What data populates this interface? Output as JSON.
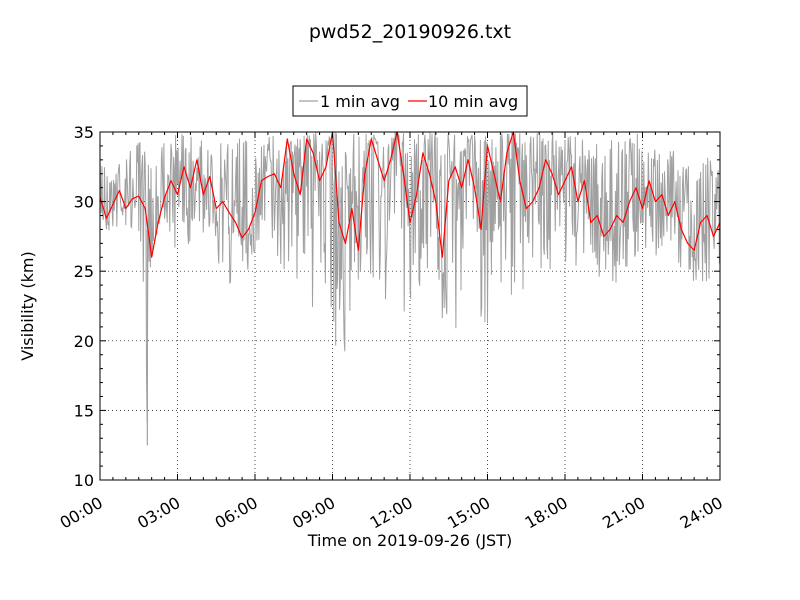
{
  "chart_data": {
    "type": "line",
    "title": "pwd52_20190926.txt",
    "xlabel": "Time on 2019-09-26 (JST)",
    "ylabel": "Visibility (km)",
    "xlim": [
      "00:00",
      "24:00"
    ],
    "ylim": [
      10,
      35
    ],
    "x_ticks": [
      "00:00",
      "03:00",
      "06:00",
      "09:00",
      "12:00",
      "15:00",
      "18:00",
      "21:00",
      "24:00"
    ],
    "y_ticks": [
      10,
      15,
      20,
      25,
      30,
      35
    ],
    "grid": true,
    "legend_position": "top-center",
    "series": [
      {
        "name": "1 min avg",
        "color": "#a0a0a0",
        "x": [
          "00:00",
          "00:30",
          "01:00",
          "01:30",
          "01:50",
          "02:00",
          "02:30",
          "03:00",
          "03:30",
          "04:00",
          "04:30",
          "05:00",
          "05:30",
          "06:00",
          "06:30",
          "07:00",
          "07:30",
          "08:00",
          "08:30",
          "09:00",
          "09:30",
          "10:00",
          "10:30",
          "11:00",
          "11:30",
          "12:00",
          "12:30",
          "13:00",
          "13:30",
          "14:00",
          "14:30",
          "15:00",
          "15:30",
          "16:00",
          "16:30",
          "17:00",
          "17:30",
          "18:00",
          "18:30",
          "19:00",
          "19:30",
          "20:00",
          "20:30",
          "21:00",
          "21:30",
          "22:00",
          "22:30",
          "23:00",
          "23:30",
          "24:00"
        ],
        "low": [
          27.5,
          27.8,
          28.0,
          27.5,
          12.5,
          27.0,
          28.5,
          26.0,
          27.0,
          27.2,
          25.0,
          23.8,
          24.5,
          25.5,
          24.8,
          25.0,
          24.5,
          21.5,
          23.5,
          18.2,
          17.9,
          22.0,
          20.5,
          22.5,
          22.0,
          20.8,
          21.5,
          22.5,
          19.0,
          21.5,
          20.8,
          21.0,
          22.0,
          22.5,
          24.0,
          24.5,
          25.0,
          24.8,
          25.0,
          25.5,
          24.0,
          24.0,
          25.0,
          25.5,
          26.0,
          26.0,
          25.0,
          23.8,
          23.5,
          25.0
        ],
        "high": [
          33.0,
          34.0,
          33.5,
          34.5,
          33.5,
          35.0,
          35.0,
          35.0,
          35.0,
          34.5,
          34.0,
          35.0,
          35.0,
          35.0,
          35.0,
          35.0,
          35.0,
          35.0,
          35.0,
          35.0,
          35.0,
          35.0,
          35.0,
          35.0,
          35.0,
          35.0,
          35.0,
          35.0,
          35.0,
          35.0,
          35.0,
          35.0,
          35.0,
          35.0,
          35.0,
          35.0,
          35.0,
          35.0,
          35.0,
          34.5,
          34.0,
          35.0,
          35.0,
          35.0,
          34.0,
          34.0,
          33.5,
          33.0,
          33.5,
          32.5
        ]
      },
      {
        "name": "10 min avg",
        "color": "#ff0000",
        "x": [
          "00:00",
          "00:15",
          "00:30",
          "00:45",
          "01:00",
          "01:15",
          "01:30",
          "01:45",
          "02:00",
          "02:15",
          "02:30",
          "02:45",
          "03:00",
          "03:15",
          "03:30",
          "03:45",
          "04:00",
          "04:15",
          "04:30",
          "04:45",
          "05:00",
          "05:15",
          "05:30",
          "05:45",
          "06:00",
          "06:15",
          "06:30",
          "06:45",
          "07:00",
          "07:15",
          "07:30",
          "07:45",
          "08:00",
          "08:15",
          "08:30",
          "08:45",
          "09:00",
          "09:15",
          "09:30",
          "09:45",
          "10:00",
          "10:15",
          "10:30",
          "10:45",
          "11:00",
          "11:15",
          "11:30",
          "11:45",
          "12:00",
          "12:15",
          "12:30",
          "12:45",
          "13:00",
          "13:15",
          "13:30",
          "13:45",
          "14:00",
          "14:15",
          "14:30",
          "14:45",
          "15:00",
          "15:15",
          "15:30",
          "15:45",
          "16:00",
          "16:15",
          "16:30",
          "16:45",
          "17:00",
          "17:15",
          "17:30",
          "17:45",
          "18:00",
          "18:15",
          "18:30",
          "18:45",
          "19:00",
          "19:15",
          "19:30",
          "19:45",
          "20:00",
          "20:15",
          "20:30",
          "20:45",
          "21:00",
          "21:15",
          "21:30",
          "21:45",
          "22:00",
          "22:15",
          "22:30",
          "22:45",
          "23:00",
          "23:15",
          "23:30",
          "23:45",
          "24:00"
        ],
        "values": [
          30.3,
          28.8,
          29.8,
          30.8,
          29.5,
          30.2,
          30.4,
          29.5,
          26.0,
          28.5,
          30.3,
          31.5,
          30.5,
          32.5,
          31.0,
          33.0,
          30.5,
          31.8,
          29.5,
          30.0,
          29.2,
          28.5,
          27.4,
          28.0,
          29.2,
          31.5,
          31.8,
          32.0,
          31.0,
          34.5,
          32.0,
          30.5,
          34.5,
          33.5,
          31.5,
          32.5,
          35.0,
          28.5,
          27.0,
          29.5,
          26.5,
          32.0,
          34.5,
          33.0,
          31.5,
          33.0,
          35.0,
          32.0,
          28.5,
          30.5,
          33.5,
          32.0,
          30.0,
          26.0,
          31.5,
          32.5,
          31.0,
          33.0,
          31.0,
          28.0,
          34.0,
          32.0,
          30.0,
          33.5,
          35.0,
          31.5,
          29.5,
          30.0,
          31.0,
          33.0,
          32.0,
          30.5,
          31.5,
          32.5,
          30.0,
          31.5,
          28.5,
          29.0,
          27.5,
          28.0,
          29.0,
          28.5,
          30.0,
          31.0,
          29.5,
          31.5,
          30.0,
          30.5,
          29.0,
          30.0,
          28.0,
          27.0,
          26.5,
          28.5,
          29.0,
          27.5,
          28.5
        ]
      }
    ]
  }
}
